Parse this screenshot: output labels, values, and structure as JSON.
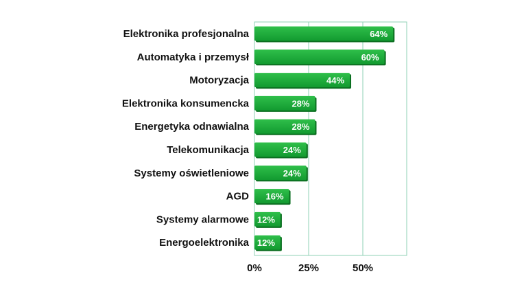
{
  "chart_data": {
    "type": "bar",
    "orientation": "horizontal",
    "categories": [
      "Elektronika profesjonalna",
      "Automatyka i przemysł",
      "Motoryzacja",
      "Elektronika konsumencka",
      "Energetyka odnawialna",
      "Telekomunikacja",
      "Systemy oświetleniowe",
      "AGD",
      "Systemy alarmowe",
      "Energoelektronika"
    ],
    "values": [
      64,
      60,
      44,
      28,
      28,
      24,
      24,
      16,
      12,
      12
    ],
    "value_labels": [
      "64%",
      "60%",
      "44%",
      "28%",
      "28%",
      "24%",
      "24%",
      "16%",
      "12%",
      "12%"
    ],
    "xlim": [
      0,
      70
    ],
    "xticks": [
      0,
      25,
      50
    ],
    "xtick_labels": [
      "0%",
      "25%",
      "50%"
    ],
    "title": "",
    "xlabel": "",
    "ylabel": "",
    "grid": true,
    "legend": "none",
    "colors": {
      "bar_top": "#2fbf4a",
      "bar_bottom": "#129a30",
      "bar_shadow": "#0b6e20",
      "grid": "#8fd0b6",
      "frame": "#8fd0b6",
      "label": "#111111",
      "value_label": "#ffffff"
    }
  }
}
